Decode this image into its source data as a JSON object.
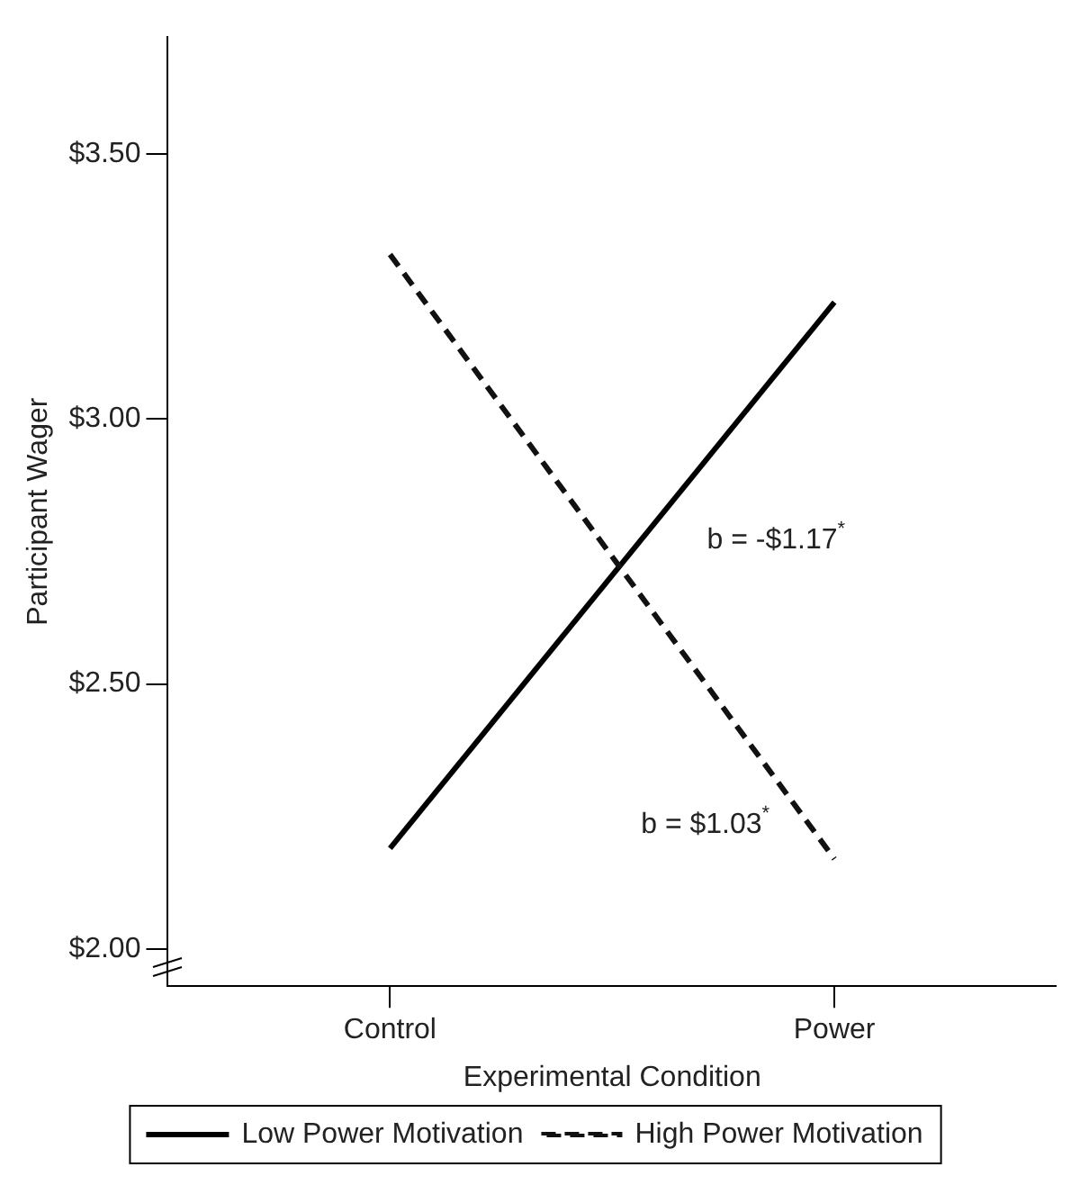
{
  "chart_data": {
    "type": "line",
    "xlabel": "Experimental Condition",
    "ylabel": "Participant Wager",
    "categories": [
      "Control",
      "Power"
    ],
    "series": [
      {
        "name": "Low Power Motivation",
        "color": "#000000",
        "values": [
          2.19,
          3.22
        ],
        "line_style": "solid"
      },
      {
        "name": "High Power Motivation",
        "color": "#111111",
        "values": [
          3.31,
          2.17
        ],
        "line_style": "dashed"
      }
    ],
    "ylim": [
      1.93,
      3.72
    ],
    "yticks": [
      {
        "value": 2,
        "label": "$2.00"
      },
      {
        "value": 2.5,
        "label": "$2.50"
      },
      {
        "value": 3,
        "label": "$3.00"
      },
      {
        "value": 3.5,
        "label": "$3.50"
      }
    ],
    "annotations": [
      "b = -$1.17$^{*}$",
      "b = $1.03$^{*}$"
    ],
    "grid": false,
    "legend": "bottom",
    "marker": "none"
  }
}
